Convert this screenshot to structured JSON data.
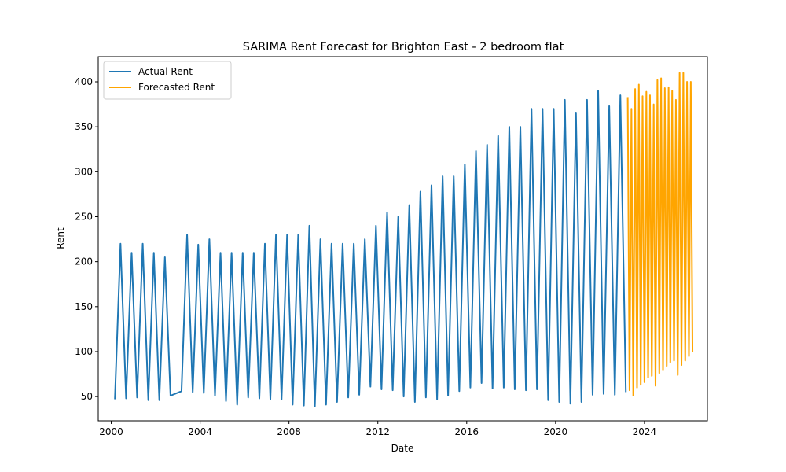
{
  "chart_data": {
    "type": "line",
    "title": "SARIMA Rent Forecast for Brighton East - 2 bedroom flat",
    "xlabel": "Date",
    "ylabel": "Rent",
    "xlim": [
      "1999-06-01",
      "2026-11-01"
    ],
    "ylim": [
      23,
      428
    ],
    "x_ticks": [
      "2000",
      "2004",
      "2008",
      "2012",
      "2016",
      "2020",
      "2024"
    ],
    "y_ticks": [
      50,
      100,
      150,
      200,
      250,
      300,
      350,
      400
    ],
    "grid": false,
    "legend_position": "upper-left",
    "series": [
      {
        "name": "Actual Rent",
        "color": "#1f77b4",
        "points": [
          [
            "2000-03-01",
            47
          ],
          [
            "2000-06-01",
            220
          ],
          [
            "2000-09-01",
            48
          ],
          [
            "2000-12-01",
            210
          ],
          [
            "2001-03-01",
            49
          ],
          [
            "2001-06-01",
            220
          ],
          [
            "2001-09-01",
            46
          ],
          [
            "2001-12-01",
            210
          ],
          [
            "2002-03-01",
            46
          ],
          [
            "2002-06-01",
            205
          ],
          [
            "2002-09-01",
            51
          ],
          [
            "2003-03-01",
            56
          ],
          [
            "2003-06-01",
            230
          ],
          [
            "2003-09-01",
            55
          ],
          [
            "2003-12-01",
            219
          ],
          [
            "2004-03-01",
            54
          ],
          [
            "2004-06-01",
            225
          ],
          [
            "2004-09-01",
            51
          ],
          [
            "2004-12-01",
            210
          ],
          [
            "2005-03-01",
            45
          ],
          [
            "2005-06-01",
            210
          ],
          [
            "2005-09-01",
            41
          ],
          [
            "2005-12-01",
            210
          ],
          [
            "2006-03-01",
            49
          ],
          [
            "2006-06-01",
            210
          ],
          [
            "2006-09-01",
            48
          ],
          [
            "2006-12-01",
            220
          ],
          [
            "2007-03-01",
            47
          ],
          [
            "2007-06-01",
            230
          ],
          [
            "2007-09-01",
            47
          ],
          [
            "2007-12-01",
            230
          ],
          [
            "2008-03-01",
            41
          ],
          [
            "2008-06-01",
            230
          ],
          [
            "2008-09-01",
            40
          ],
          [
            "2008-12-01",
            240
          ],
          [
            "2009-03-01",
            39
          ],
          [
            "2009-06-01",
            225
          ],
          [
            "2009-09-01",
            41
          ],
          [
            "2009-12-01",
            220
          ],
          [
            "2010-03-01",
            44
          ],
          [
            "2010-06-01",
            220
          ],
          [
            "2010-09-01",
            49
          ],
          [
            "2010-12-01",
            220
          ],
          [
            "2011-03-01",
            52
          ],
          [
            "2011-06-01",
            225
          ],
          [
            "2011-09-01",
            61
          ],
          [
            "2011-12-01",
            240
          ],
          [
            "2012-03-01",
            58
          ],
          [
            "2012-06-01",
            255
          ],
          [
            "2012-09-01",
            57
          ],
          [
            "2012-12-01",
            250
          ],
          [
            "2013-03-01",
            50
          ],
          [
            "2013-06-01",
            263
          ],
          [
            "2013-09-01",
            44
          ],
          [
            "2013-12-01",
            278
          ],
          [
            "2014-03-01",
            49
          ],
          [
            "2014-06-01",
            285
          ],
          [
            "2014-09-01",
            47
          ],
          [
            "2014-12-01",
            295
          ],
          [
            "2015-03-01",
            51
          ],
          [
            "2015-06-01",
            295
          ],
          [
            "2015-09-01",
            56
          ],
          [
            "2015-12-01",
            308
          ],
          [
            "2016-03-01",
            60
          ],
          [
            "2016-06-01",
            323
          ],
          [
            "2016-09-01",
            65
          ],
          [
            "2016-12-01",
            330
          ],
          [
            "2017-03-01",
            59
          ],
          [
            "2017-06-01",
            340
          ],
          [
            "2017-09-01",
            60
          ],
          [
            "2017-12-01",
            350
          ],
          [
            "2018-03-01",
            58
          ],
          [
            "2018-06-01",
            350
          ],
          [
            "2018-09-01",
            57
          ],
          [
            "2018-12-01",
            370
          ],
          [
            "2019-03-01",
            58
          ],
          [
            "2019-06-01",
            370
          ],
          [
            "2019-09-01",
            46
          ],
          [
            "2019-12-01",
            370
          ],
          [
            "2020-03-01",
            44
          ],
          [
            "2020-06-01",
            380
          ],
          [
            "2020-09-01",
            42
          ],
          [
            "2020-12-01",
            365
          ],
          [
            "2021-03-01",
            44
          ],
          [
            "2021-06-01",
            380
          ],
          [
            "2021-09-01",
            52
          ],
          [
            "2021-12-01",
            390
          ],
          [
            "2022-03-01",
            53
          ],
          [
            "2022-06-01",
            373
          ],
          [
            "2022-09-01",
            52
          ],
          [
            "2022-12-01",
            385
          ],
          [
            "2023-03-01",
            55
          ]
        ]
      },
      {
        "name": "Forecasted Rent",
        "color": "#ffa500",
        "points": [
          [
            "2023-04-01",
            383
          ],
          [
            "2023-05-01",
            57
          ],
          [
            "2023-06-01",
            370
          ],
          [
            "2023-07-01",
            51
          ],
          [
            "2023-08-01",
            392
          ],
          [
            "2023-09-01",
            60
          ],
          [
            "2023-10-01",
            397
          ],
          [
            "2023-11-01",
            63
          ],
          [
            "2023-12-01",
            384
          ],
          [
            "2024-01-01",
            66
          ],
          [
            "2024-02-01",
            389
          ],
          [
            "2024-03-01",
            71
          ],
          [
            "2024-04-01",
            385
          ],
          [
            "2024-05-01",
            73
          ],
          [
            "2024-06-01",
            375
          ],
          [
            "2024-07-01",
            62
          ],
          [
            "2024-08-01",
            402
          ],
          [
            "2024-09-01",
            76
          ],
          [
            "2024-10-01",
            404
          ],
          [
            "2024-11-01",
            80
          ],
          [
            "2024-12-01",
            393
          ],
          [
            "2025-01-01",
            84
          ],
          [
            "2025-02-01",
            394
          ],
          [
            "2025-03-01",
            88
          ],
          [
            "2025-04-01",
            390
          ],
          [
            "2025-05-01",
            90
          ],
          [
            "2025-06-01",
            380
          ],
          [
            "2025-07-01",
            74
          ],
          [
            "2025-08-01",
            410
          ],
          [
            "2025-09-01",
            85
          ],
          [
            "2025-10-01",
            410
          ],
          [
            "2025-11-01",
            90
          ],
          [
            "2025-12-01",
            400
          ],
          [
            "2026-01-01",
            95
          ],
          [
            "2026-02-01",
            400
          ],
          [
            "2026-03-01",
            100
          ]
        ]
      }
    ]
  }
}
